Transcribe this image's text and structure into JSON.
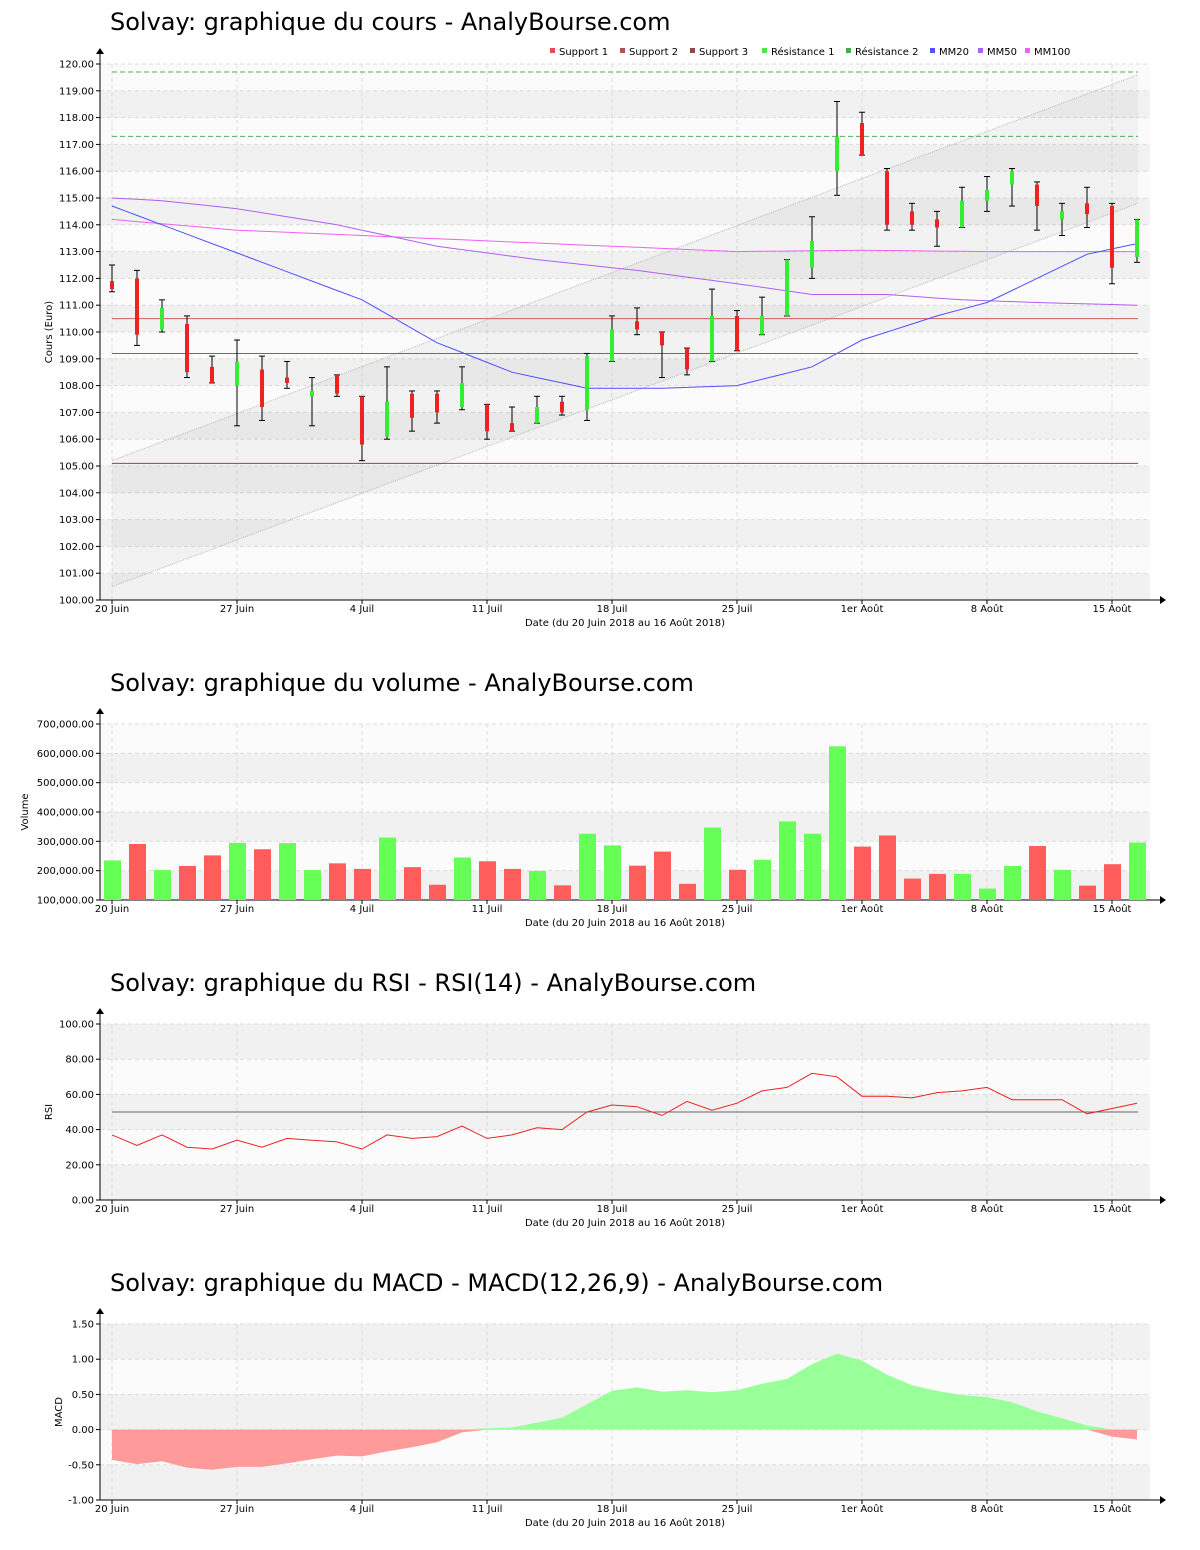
{
  "x_axis": {
    "tick_labels": [
      "20 Juin",
      "27 Juin",
      "4 Juil",
      "11 Juil",
      "18 Juil",
      "25 Juil",
      "1er Août",
      "8 Août",
      "15 Août"
    ],
    "label": "Date (du 20 Juin 2018 au 16 Août 2018)"
  },
  "chart_data": [
    {
      "id": "price",
      "type": "candlestick",
      "title": "Solvay: graphique du cours - AnalyBourse.com",
      "ylabel": "Cours (Euro)",
      "ylim": [
        100,
        120
      ],
      "yticks": [
        "100.00",
        "101.00",
        "102.00",
        "103.00",
        "104.00",
        "105.00",
        "106.00",
        "107.00",
        "108.00",
        "109.00",
        "110.00",
        "111.00",
        "112.00",
        "113.00",
        "114.00",
        "115.00",
        "116.00",
        "117.00",
        "118.00",
        "119.00",
        "120.00"
      ],
      "legend": [
        {
          "name": "Support 1",
          "color": "#e05050"
        },
        {
          "name": "Support 2",
          "color": "#b05050"
        },
        {
          "name": "Support 3",
          "color": "#8a4a4a"
        },
        {
          "name": "Résistance 1",
          "color": "#50e050"
        },
        {
          "name": "Résistance 2",
          "color": "#40b040"
        },
        {
          "name": "MM20",
          "color": "#5050ff"
        },
        {
          "name": "MM50",
          "color": "#b060f0"
        },
        {
          "name": "MM100",
          "color": "#f060f0"
        }
      ],
      "candles": [
        {
          "open": 111.9,
          "high": 112.5,
          "low": 111.5,
          "close": 111.6
        },
        {
          "open": 112.0,
          "high": 112.3,
          "low": 109.5,
          "close": 109.9
        },
        {
          "open": 110.1,
          "high": 111.2,
          "low": 110.0,
          "close": 110.9
        },
        {
          "open": 110.3,
          "high": 110.6,
          "low": 108.3,
          "close": 108.5
        },
        {
          "open": 108.7,
          "high": 109.1,
          "low": 108.1,
          "close": 108.1
        },
        {
          "open": 108.0,
          "high": 109.7,
          "low": 106.5,
          "close": 108.9
        },
        {
          "open": 108.6,
          "high": 109.1,
          "low": 106.7,
          "close": 107.2
        },
        {
          "open": 108.3,
          "high": 108.9,
          "low": 107.9,
          "close": 108.1
        },
        {
          "open": 107.6,
          "high": 108.3,
          "low": 106.5,
          "close": 107.8
        },
        {
          "open": 108.4,
          "high": 108.4,
          "low": 107.6,
          "close": 107.7
        },
        {
          "open": 107.6,
          "high": 107.6,
          "low": 105.2,
          "close": 105.8
        },
        {
          "open": 106.1,
          "high": 108.7,
          "low": 106.0,
          "close": 107.4
        },
        {
          "open": 107.7,
          "high": 107.8,
          "low": 106.3,
          "close": 106.8
        },
        {
          "open": 107.7,
          "high": 107.8,
          "low": 106.6,
          "close": 107.0
        },
        {
          "open": 107.2,
          "high": 108.7,
          "low": 107.1,
          "close": 108.1
        },
        {
          "open": 107.3,
          "high": 107.3,
          "low": 106.0,
          "close": 106.3
        },
        {
          "open": 106.6,
          "high": 107.2,
          "low": 106.3,
          "close": 106.3
        },
        {
          "open": 106.6,
          "high": 107.6,
          "low": 106.6,
          "close": 107.2
        },
        {
          "open": 107.4,
          "high": 107.6,
          "low": 106.9,
          "close": 107.0
        },
        {
          "open": 107.1,
          "high": 109.2,
          "low": 106.7,
          "close": 109.1
        },
        {
          "open": 108.9,
          "high": 110.6,
          "low": 108.9,
          "close": 110.1
        },
        {
          "open": 110.4,
          "high": 110.9,
          "low": 109.9,
          "close": 110.1
        },
        {
          "open": 110.0,
          "high": 110.0,
          "low": 108.3,
          "close": 109.5
        },
        {
          "open": 109.4,
          "high": 109.4,
          "low": 108.4,
          "close": 108.6
        },
        {
          "open": 108.9,
          "high": 111.6,
          "low": 108.9,
          "close": 110.6
        },
        {
          "open": 110.6,
          "high": 110.8,
          "low": 109.3,
          "close": 109.3
        },
        {
          "open": 109.9,
          "high": 111.3,
          "low": 109.9,
          "close": 110.6
        },
        {
          "open": 110.6,
          "high": 112.7,
          "low": 110.6,
          "close": 112.7
        },
        {
          "open": 112.4,
          "high": 114.3,
          "low": 112.0,
          "close": 113.4
        },
        {
          "open": 116.0,
          "high": 118.6,
          "low": 115.1,
          "close": 117.3
        },
        {
          "open": 117.8,
          "high": 118.2,
          "low": 116.6,
          "close": 116.6
        },
        {
          "open": 116.0,
          "high": 116.1,
          "low": 113.8,
          "close": 114.0
        },
        {
          "open": 114.5,
          "high": 114.8,
          "low": 113.8,
          "close": 114.0
        },
        {
          "open": 114.2,
          "high": 114.5,
          "low": 113.2,
          "close": 113.9
        },
        {
          "open": 113.9,
          "high": 115.4,
          "low": 113.9,
          "close": 114.9
        },
        {
          "open": 114.9,
          "high": 115.8,
          "low": 114.5,
          "close": 115.3
        },
        {
          "open": 115.5,
          "high": 116.1,
          "low": 114.7,
          "close": 116.0
        },
        {
          "open": 115.5,
          "high": 115.6,
          "low": 113.8,
          "close": 114.7
        },
        {
          "open": 114.2,
          "high": 114.8,
          "low": 113.6,
          "close": 114.5
        },
        {
          "open": 114.8,
          "high": 115.4,
          "low": 113.9,
          "close": 114.4
        },
        {
          "open": 114.7,
          "high": 114.8,
          "low": 111.8,
          "close": 112.4
        },
        {
          "open": 112.8,
          "high": 114.2,
          "low": 112.6,
          "close": 114.2
        }
      ],
      "support_levels": [
        110.5,
        109.2,
        105.1
      ],
      "resistance_levels": [
        117.3,
        119.7
      ],
      "trend_channel": {
        "lower": [
          100.5,
          114.8
        ],
        "upper": [
          105.2,
          119.6
        ]
      },
      "mm20": [
        [
          0,
          114.7
        ],
        [
          2,
          114.0
        ],
        [
          6,
          112.6
        ],
        [
          10,
          111.2
        ],
        [
          13,
          109.6
        ],
        [
          16,
          108.5
        ],
        [
          19,
          107.9
        ],
        [
          22,
          107.9
        ],
        [
          25,
          108.0
        ],
        [
          28,
          108.7
        ],
        [
          30,
          109.7
        ],
        [
          33,
          110.6
        ],
        [
          35,
          111.1
        ],
        [
          37,
          112.0
        ],
        [
          39,
          112.9
        ],
        [
          41,
          113.3
        ]
      ],
      "mm50": [
        [
          0,
          115.0
        ],
        [
          2,
          114.9
        ],
        [
          5,
          114.6
        ],
        [
          9,
          114.0
        ],
        [
          13,
          113.2
        ],
        [
          17,
          112.7
        ],
        [
          21,
          112.3
        ],
        [
          25,
          111.8
        ],
        [
          28,
          111.4
        ],
        [
          31,
          111.4
        ],
        [
          34,
          111.2
        ],
        [
          37,
          111.1
        ],
        [
          41,
          111.0
        ]
      ],
      "mm100": [
        [
          0,
          114.2
        ],
        [
          5,
          113.8
        ],
        [
          10,
          113.6
        ],
        [
          15,
          113.4
        ],
        [
          20,
          113.2
        ],
        [
          25,
          113.0
        ],
        [
          30,
          113.05
        ],
        [
          35,
          113.0
        ],
        [
          41,
          113.0
        ]
      ]
    },
    {
      "id": "volume",
      "type": "bar",
      "title": "Solvay: graphique du volume - AnalyBourse.com",
      "ylabel": "Volume",
      "ylim": [
        100000,
        700000
      ],
      "yticks": [
        "100,000.00",
        "200,000.00",
        "300,000.00",
        "400,000.00",
        "500,000.00",
        "600,000.00",
        "700,000.00"
      ],
      "values": [
        235000,
        291000,
        202000,
        216000,
        252000,
        295000,
        273000,
        294000,
        202000,
        225000,
        206000,
        313000,
        212000,
        152000,
        245000,
        232000,
        206000,
        199000,
        150000,
        326000,
        286000,
        217000,
        265000,
        155000,
        347000,
        203000,
        237000,
        368000,
        326000,
        624000,
        282000,
        320000,
        173000,
        189000,
        189000,
        139000,
        216000,
        284000,
        203000,
        149000,
        222000,
        296000
      ],
      "up": [
        true,
        false,
        true,
        false,
        false,
        true,
        false,
        true,
        true,
        false,
        false,
        true,
        false,
        false,
        true,
        false,
        false,
        true,
        false,
        true,
        true,
        false,
        false,
        false,
        true,
        false,
        true,
        true,
        true,
        true,
        false,
        false,
        false,
        false,
        true,
        true,
        true,
        false,
        true,
        false,
        false,
        true
      ]
    },
    {
      "id": "rsi",
      "type": "line",
      "title": "Solvay: graphique du RSI - RSI(14) - AnalyBourse.com",
      "ylabel": "RSI",
      "ylim": [
        0,
        100
      ],
      "yticks": [
        "0.00",
        "20.00",
        "40.00",
        "60.00",
        "80.00",
        "100.00"
      ],
      "reference": 50,
      "values": [
        37,
        31,
        37,
        30,
        29,
        34,
        30,
        35,
        34,
        33,
        29,
        37,
        35,
        36,
        42,
        35,
        37,
        41,
        40,
        50,
        54,
        53,
        48,
        56,
        51,
        55,
        62,
        64,
        72,
        70,
        59,
        59,
        58,
        61,
        62,
        64,
        57,
        57,
        57,
        49,
        52,
        55
      ]
    },
    {
      "id": "macd",
      "type": "area",
      "title": "Solvay: graphique du MACD - MACD(12,26,9) - AnalyBourse.com",
      "ylabel": "MACD",
      "ylim": [
        -1.0,
        1.5
      ],
      "yticks": [
        "-1.00",
        "-0.50",
        "0.00",
        "0.50",
        "1.00",
        "1.50"
      ],
      "values": [
        -0.43,
        -0.49,
        -0.45,
        -0.54,
        -0.57,
        -0.53,
        -0.53,
        -0.48,
        -0.42,
        -0.37,
        -0.38,
        -0.31,
        -0.25,
        -0.18,
        -0.04,
        0.02,
        0.03,
        0.1,
        0.17,
        0.36,
        0.55,
        0.6,
        0.54,
        0.56,
        0.53,
        0.56,
        0.65,
        0.72,
        0.93,
        1.08,
        0.98,
        0.78,
        0.63,
        0.55,
        0.49,
        0.46,
        0.39,
        0.26,
        0.16,
        0.06,
        -0.1,
        -0.14
      ]
    }
  ]
}
